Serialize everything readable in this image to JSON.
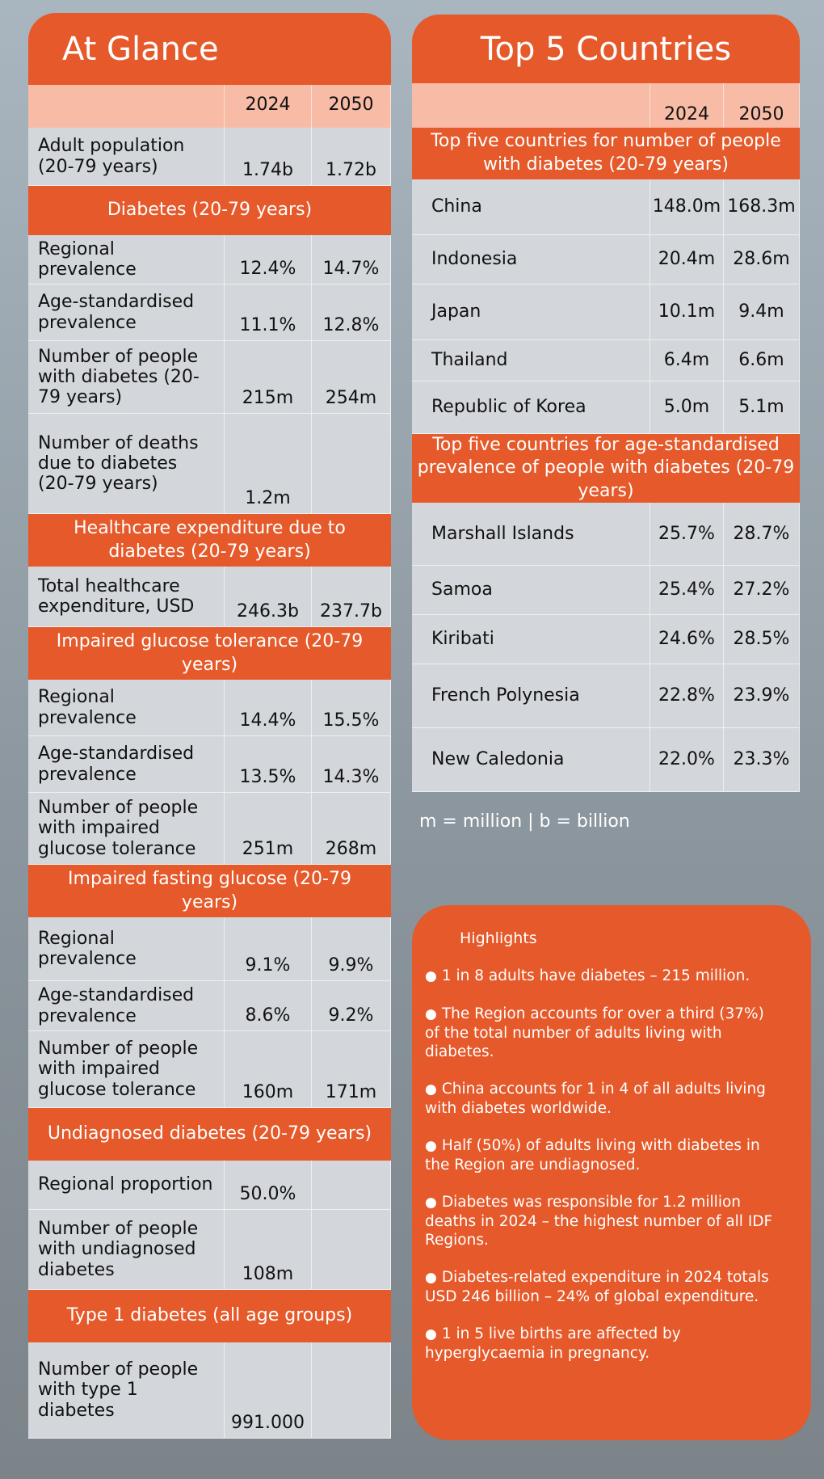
{
  "at_glance": {
    "title": "At Glance",
    "columns": [
      "2024",
      "2050"
    ],
    "sections": [
      {
        "rows": [
          {
            "label": "Adult population (20-79 years)",
            "values": [
              "1.74b",
              "1.72b"
            ]
          }
        ]
      },
      {
        "title": "Diabetes (20-79 years)",
        "rows": [
          {
            "label": "Regional prevalence",
            "values": [
              "12.4%",
              "14.7%"
            ]
          },
          {
            "label": "Age-standardised prevalence",
            "values": [
              "11.1%",
              "12.8%"
            ]
          },
          {
            "label": "Number of people with diabetes (20-79 years)",
            "values": [
              "215m",
              "254m"
            ]
          },
          {
            "label": "Number of deaths due to diabetes (20-79 years)",
            "values": [
              "1.2m"
            ]
          }
        ]
      },
      {
        "title": "Healthcare expenditure due to diabetes (20-79 years)",
        "rows": [
          {
            "label": "Total healthcare expenditure, USD",
            "values": [
              "246.3b",
              "237.7b"
            ]
          }
        ]
      },
      {
        "title": "Impaired glucose tolerance (20-79 years)",
        "rows": [
          {
            "label": "Regional prevalence",
            "values": [
              "14.4%",
              "15.5%"
            ]
          },
          {
            "label": "Age-standardised prevalence",
            "values": [
              "13.5%",
              "14.3%"
            ]
          },
          {
            "label": "Number of people with impaired glucose tolerance",
            "values": [
              "251m",
              "268m"
            ]
          }
        ]
      },
      {
        "title": "Impaired fasting glucose (20-79 years)",
        "rows": [
          {
            "label": "Regional prevalence",
            "values": [
              "9.1%",
              "9.9%"
            ]
          },
          {
            "label": "Age-standardised prevalence",
            "values": [
              "8.6%",
              "9.2%"
            ]
          },
          {
            "label": "Number of people with impaired glucose tolerance",
            "values": [
              "160m",
              "171m"
            ]
          }
        ]
      },
      {
        "title": "Undiagnosed diabetes (20-79 years)",
        "rows": [
          {
            "label": "Regional proportion",
            "values": [
              "50.0%"
            ]
          },
          {
            "label": "Number of people with undiagnosed diabetes",
            "values": [
              "108m"
            ]
          }
        ]
      },
      {
        "title": "Type 1 diabetes (all age groups)",
        "rows": [
          {
            "label": "Number of people with type 1 diabetes",
            "values": [
              "991.000"
            ]
          }
        ]
      }
    ]
  },
  "top5": {
    "title": "Top 5 Countries",
    "columns": [
      "2024",
      "2050"
    ],
    "sections": [
      {
        "title": "Top five countries for number of people with diabetes (20-79 years)",
        "rows": [
          {
            "label": "China",
            "values": [
              "148.0m",
              "168.3m"
            ]
          },
          {
            "label": "Indonesia",
            "values": [
              "20.4m",
              "28.6m"
            ]
          },
          {
            "label": "Japan",
            "values": [
              "10.1m",
              "9.4m"
            ]
          },
          {
            "label": "Thailand",
            "values": [
              "6.4m",
              "6.6m"
            ]
          },
          {
            "label": "Republic of Korea",
            "values": [
              "5.0m",
              "5.1m"
            ]
          }
        ]
      },
      {
        "title": "Top five countries for age-standardised prevalence of people with diabetes (20-79 years)",
        "rows": [
          {
            "label": "Marshall Islands",
            "values": [
              "25.7%",
              "28.7%"
            ]
          },
          {
            "label": "Samoa",
            "values": [
              "25.4%",
              "27.2%"
            ]
          },
          {
            "label": "Kiribati",
            "values": [
              "24.6%",
              "28.5%"
            ]
          },
          {
            "label": "French Polynesia",
            "values": [
              "22.8%",
              "23.9%"
            ]
          },
          {
            "label": "New Caledonia",
            "values": [
              "22.0%",
              "23.3%"
            ]
          }
        ]
      }
    ]
  },
  "note": "m = million | b = billion",
  "highlights": {
    "title": "Highlights",
    "items": [
      "1 in 8 adults have diabetes – 215 million.",
      "The Region accounts for over a third (37%) of the total number of adults living with diabetes.",
      "China accounts for 1 in 4 of all adults living with diabetes worldwide.",
      "Half (50%) of adults living with diabetes in the Region are undiagnosed.",
      "Diabetes was responsible for 1.2 million deaths in 2024 – the highest number of all IDF Regions.",
      "Diabetes-related expenditure in 2024 totals USD 246 billion – 24% of global expenditure.",
      "1 in 5 live births are affected by hyperglycaemia in pregnancy."
    ]
  }
}
